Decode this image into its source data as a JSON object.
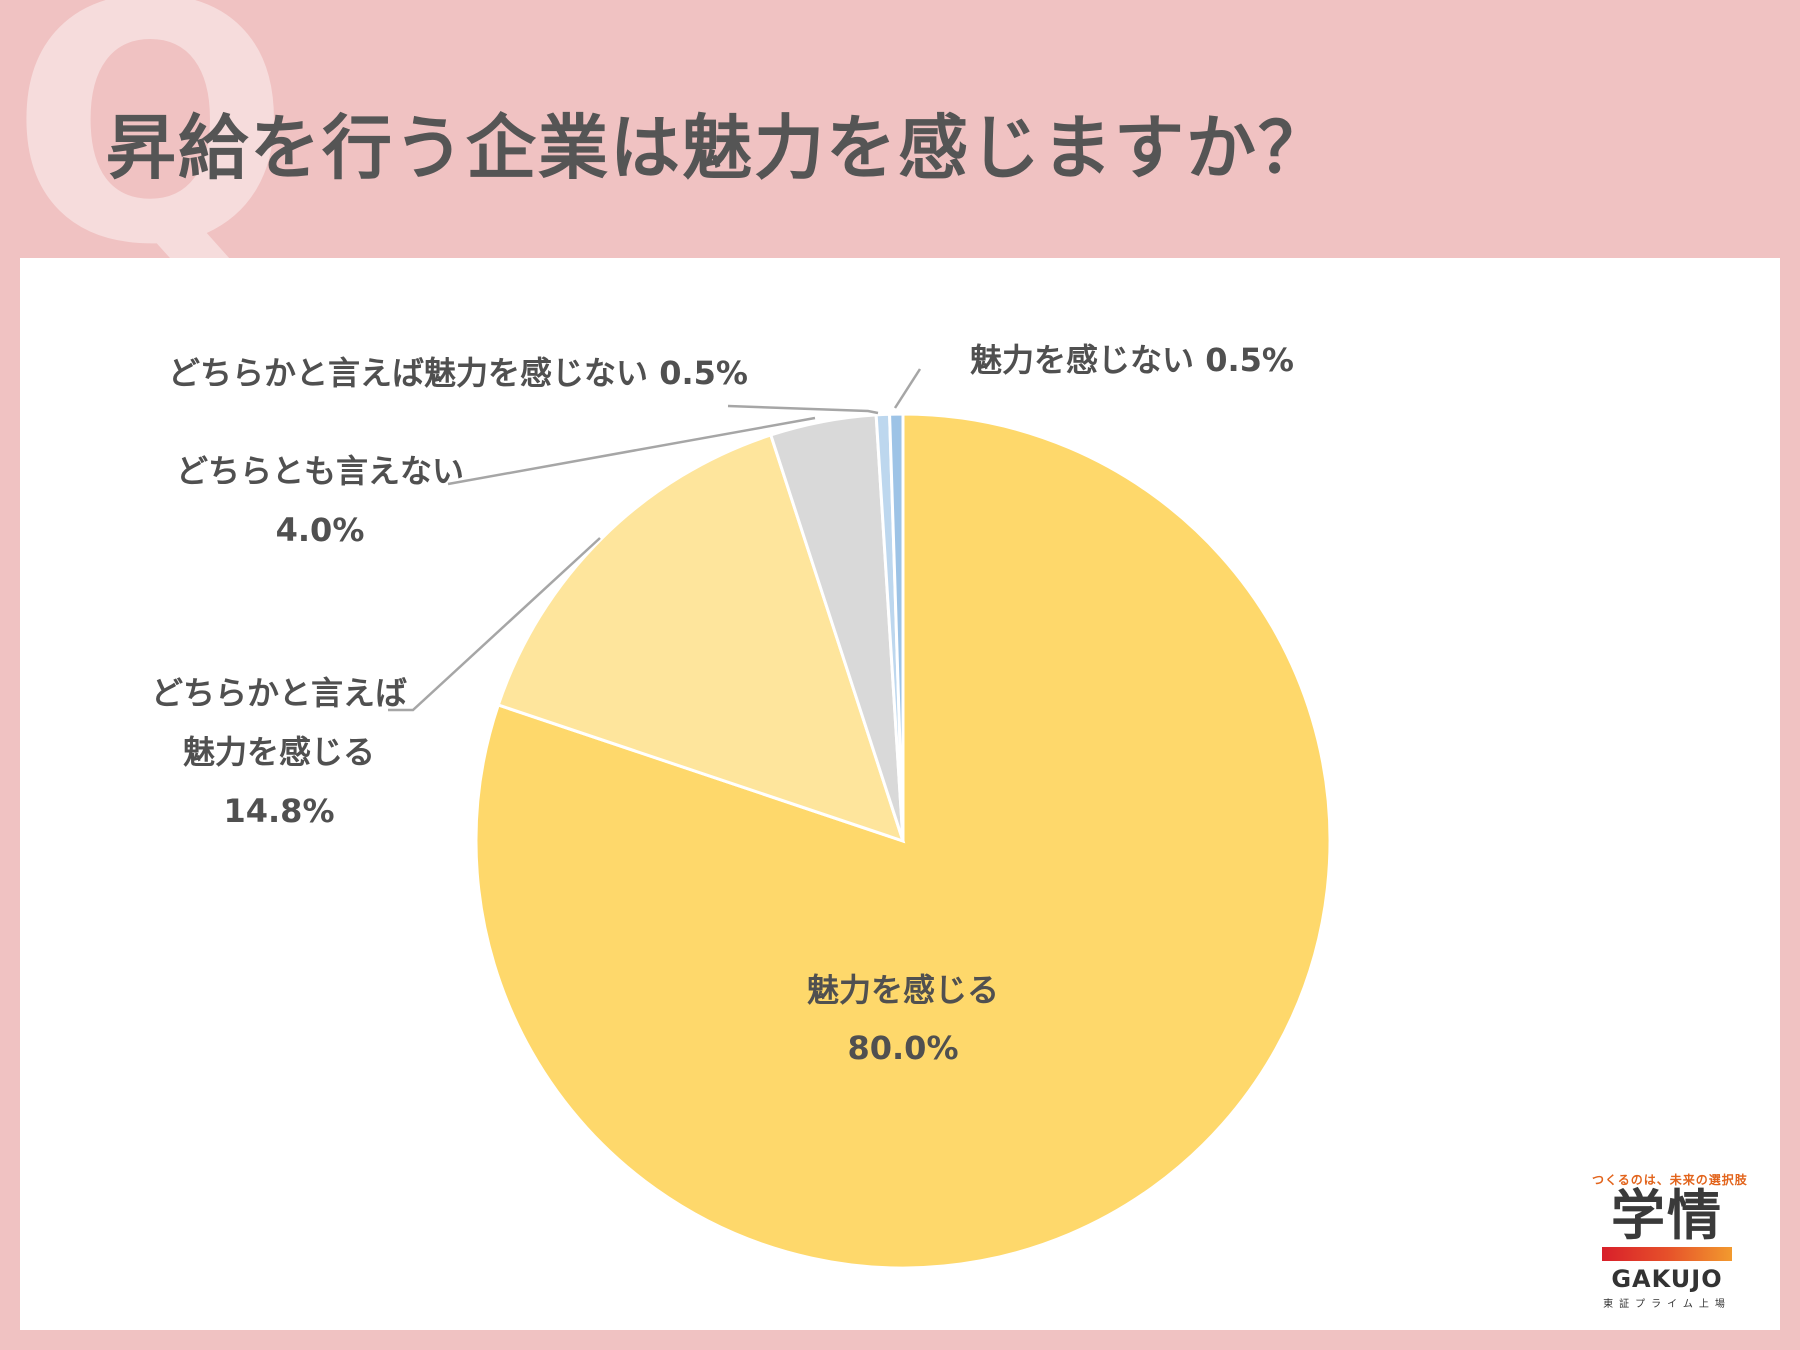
{
  "header": {
    "q_mark": "Q",
    "title": "昇給を行う企業は魅力を感じますか？"
  },
  "chart_data": {
    "type": "pie",
    "title": "昇給を行う企業は魅力を感じますか？",
    "start_angle_deg": 0,
    "direction": "clockwise",
    "slices": [
      {
        "label": "魅力を感じる",
        "value": 80.0,
        "display": "80.0%",
        "color": "#fed86b"
      },
      {
        "label": "どちらかと言えば魅力を感じる",
        "value": 14.8,
        "display": "14.8%",
        "color": "#fee59c"
      },
      {
        "label": "どちらとも言えない",
        "value": 4.0,
        "display": "4.0%",
        "color": "#d9d9d9"
      },
      {
        "label": "どちらかと言えば魅力を感じない",
        "value": 0.5,
        "display": "0.5%",
        "color": "#bdd7ee"
      },
      {
        "label": "魅力を感じない",
        "value": 0.5,
        "display": "0.5%",
        "color": "#9dc3e6"
      }
    ],
    "labels": {
      "s0": {
        "lines": [
          "魅力を感じる",
          "80.0%"
        ]
      },
      "s1": {
        "lines": [
          "どちらかと言えば",
          "魅力を感じる",
          "14.8%"
        ]
      },
      "s2": {
        "lines": [
          "どちらとも言えない",
          "4.0%"
        ]
      },
      "s3": {
        "lines": [
          "どちらかと言えば魅力を感じない 0.5%"
        ]
      },
      "s4": {
        "lines": [
          "魅力を感じない 0.5%"
        ]
      }
    }
  },
  "logo": {
    "tagline": "つくるのは、未来の選択肢",
    "kanji": "学情",
    "name": "GAKUJO",
    "sub": "東証プライム上場"
  }
}
